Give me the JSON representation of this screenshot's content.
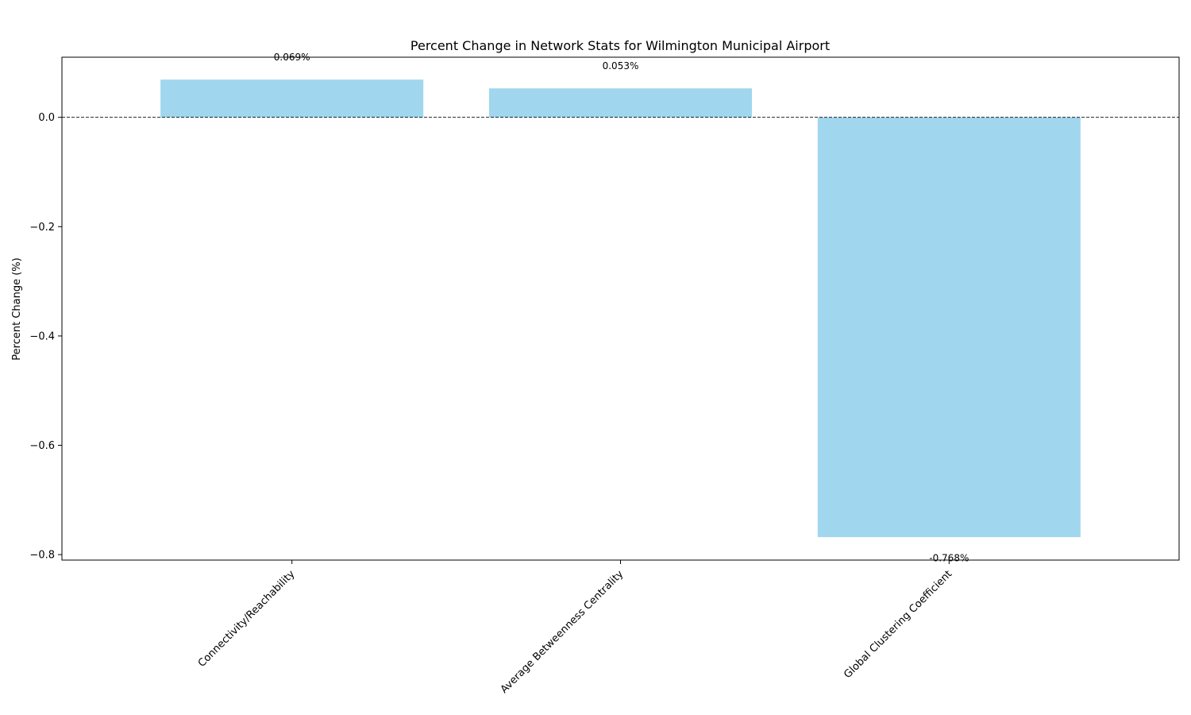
{
  "chart_data": {
    "type": "bar",
    "title": "Percent Change in Network Stats for Wilmington Municipal Airport",
    "xlabel": "",
    "ylabel": "Percent Change (%)",
    "categories": [
      "Connectivity/Reachability",
      "Average Betweenness Centrality",
      "Global Clustering Coefficient"
    ],
    "values": [
      0.069,
      0.053,
      -0.768
    ],
    "value_labels": [
      "0.069%",
      "0.053%",
      "-0.768%"
    ],
    "ylim": [
      -0.81,
      0.11
    ],
    "yticks": [
      0.0,
      -0.2,
      -0.4,
      -0.6,
      -0.8
    ],
    "ytick_labels": [
      "0.0",
      "−0.2",
      "−0.4",
      "−0.6",
      "−0.8"
    ],
    "bar_color": "#a0d7ee",
    "zero_line": "dashed",
    "grid": false
  }
}
